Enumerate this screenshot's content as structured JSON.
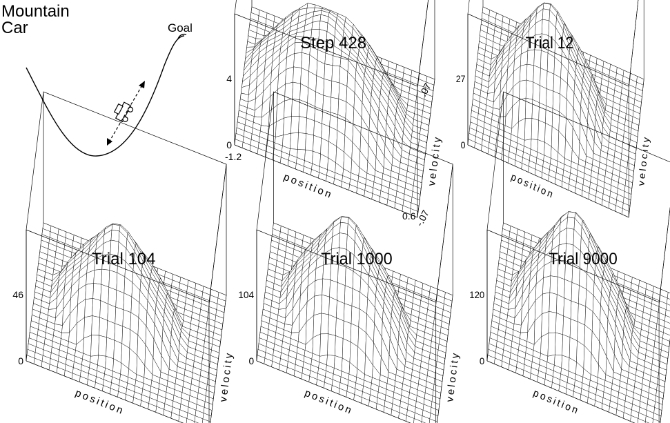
{
  "title": [
    "Mountain",
    "Car"
  ],
  "goal_label": "Goal",
  "axes": {
    "x": "position",
    "y": "velocity"
  },
  "tick_labels": {
    "x_min": "-1.2",
    "x_max": "0.6",
    "y_min": "-.07",
    "y_max": ".07",
    "z_min": "0"
  },
  "panels": [
    {
      "id": "step-428",
      "title": "Step 428",
      "z_max": "4",
      "peak_height": 0.62,
      "plateau": true
    },
    {
      "id": "trial-12",
      "title": "Trial 12",
      "z_max": "27",
      "peak_height": 0.72,
      "plateau": false
    },
    {
      "id": "trial-104",
      "title": "Trial 104",
      "z_max": "46",
      "peak_height": 0.68,
      "plateau": false
    },
    {
      "id": "trial-1000",
      "title": "Trial 1000",
      "z_max": "104",
      "peak_height": 0.74,
      "plateau": false
    },
    {
      "id": "trial-9000",
      "title": "Trial 9000",
      "z_max": "120",
      "peak_height": 0.78,
      "plateau": false
    }
  ],
  "colors": {
    "line": "#000000",
    "background": "#ffffff"
  }
}
